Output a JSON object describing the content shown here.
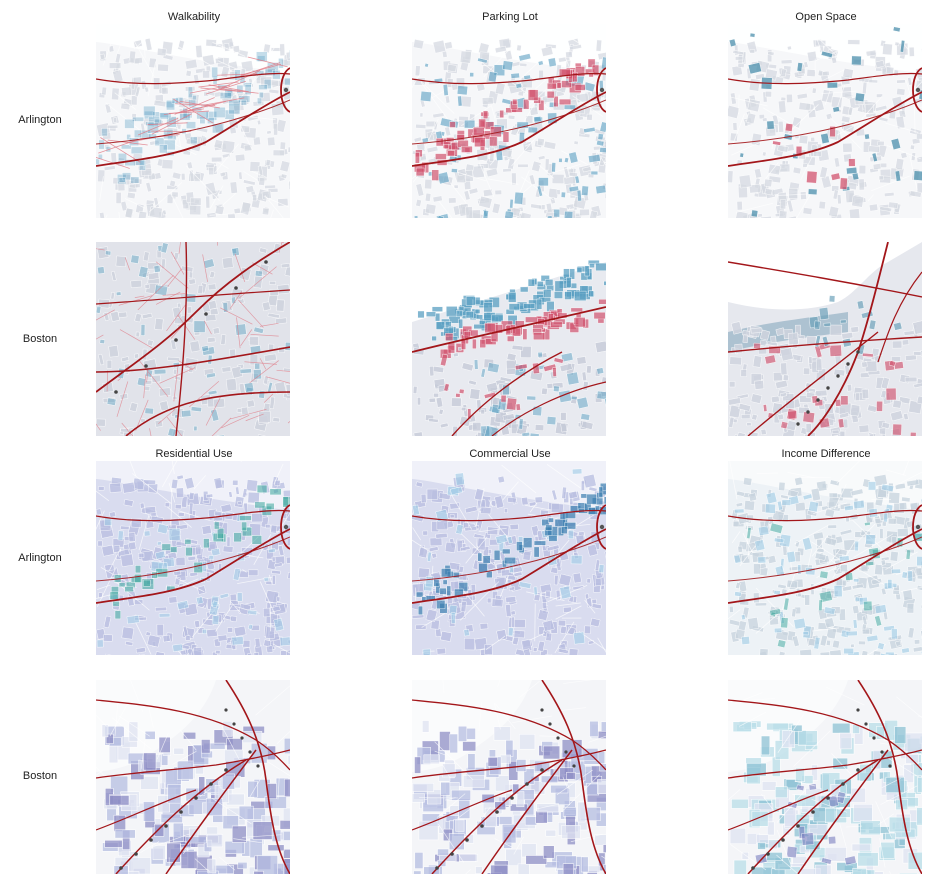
{
  "column_titles_top": [
    "Walkability",
    "Parking Lot",
    "Open Space"
  ],
  "column_titles_bottom": [
    "Residential Use",
    "Commercial Use",
    "Income Difference"
  ],
  "row_labels": [
    "Arlington",
    "Boston",
    "Arlington",
    "Boston"
  ],
  "colors": {
    "transit_line": "#a3161a",
    "street_red": "#e07a86",
    "blue_highlight": "#5a9fc2",
    "pink_highlight": "#d1536e",
    "teal": "#3aa59c",
    "purple": "#8f8fc6",
    "lavender": "#cfd2ea",
    "light_blue": "#9fcbe6",
    "background_block": "#e4e6ec"
  },
  "icons": [
    "transit-station-dot"
  ]
}
